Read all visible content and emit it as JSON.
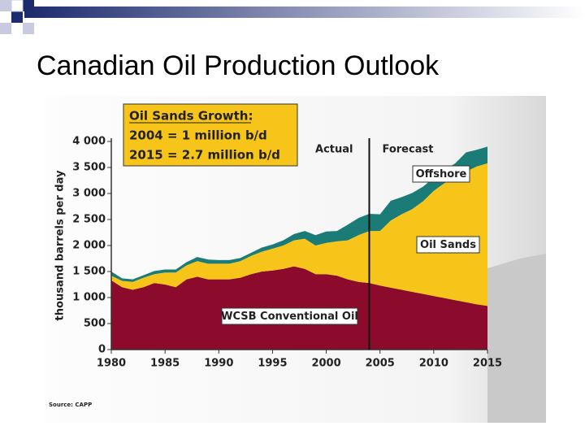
{
  "chart_data": {
    "type": "stacked_area",
    "title": "Canadian Oil Production Outlook",
    "ylabel": "thousand barrels per day",
    "annotation": [
      "Oil Sands Growth:",
      "2004 = 1 million b/d",
      "2015 = 2.7 million b/d"
    ],
    "actual_label": "Actual",
    "forecast_label": "Forecast",
    "forecast_start": 2004,
    "source": "Source: CAPP",
    "x": [
      1980,
      1981,
      1982,
      1983,
      1984,
      1985,
      1986,
      1987,
      1988,
      1989,
      1990,
      1991,
      1992,
      1993,
      1994,
      1995,
      1996,
      1997,
      1998,
      1999,
      2000,
      2001,
      2002,
      2003,
      2004,
      2005,
      2006,
      2007,
      2008,
      2009,
      2010,
      2011,
      2012,
      2013,
      2014,
      2015
    ],
    "xlim": [
      1980,
      2015
    ],
    "xticks": [
      1980,
      1985,
      1990,
      1995,
      2000,
      2005,
      2010,
      2015
    ],
    "ylim": [
      0,
      4000
    ],
    "yticks": [
      0,
      500,
      {
        "value": 1000,
        "label": "1 000"
      },
      {
        "value": 1500,
        "label": "1 500"
      },
      {
        "value": 2000,
        "label": "2 000"
      },
      {
        "value": 2500,
        "label": "2 500"
      },
      {
        "value": 3000,
        "label": "3 000"
      },
      {
        "value": 3500,
        "label": "3 500"
      },
      {
        "value": 4000,
        "label": "4 000"
      }
    ],
    "series": [
      {
        "name": "WCSB Conventional Oil",
        "color": "#8c0a2c",
        "values": [
          1330,
          1200,
          1150,
          1200,
          1280,
          1250,
          1200,
          1350,
          1400,
          1350,
          1350,
          1350,
          1380,
          1450,
          1500,
          1520,
          1550,
          1600,
          1550,
          1450,
          1450,
          1420,
          1350,
          1300,
          1280,
          1230,
          1190,
          1150,
          1110,
          1070,
          1030,
          990,
          950,
          910,
          870,
          840
        ]
      },
      {
        "name": "Oil Sands",
        "color": "#f7c51a",
        "values": [
          90,
          120,
          150,
          180,
          170,
          230,
          280,
          270,
          300,
          300,
          300,
          300,
          320,
          350,
          380,
          420,
          450,
          500,
          580,
          550,
          600,
          660,
          750,
          900,
          1000,
          1050,
          1290,
          1450,
          1590,
          1780,
          2020,
          2210,
          2350,
          2510,
          2650,
          2740
        ]
      },
      {
        "name": "Offshore",
        "color": "#1a7b77",
        "values": [
          80,
          50,
          50,
          50,
          60,
          60,
          60,
          60,
          80,
          80,
          70,
          70,
          60,
          60,
          80,
          80,
          100,
          120,
          150,
          200,
          220,
          200,
          300,
          330,
          330,
          320,
          380,
          330,
          310,
          280,
          250,
          250,
          280,
          370,
          320,
          320
        ]
      }
    ]
  }
}
